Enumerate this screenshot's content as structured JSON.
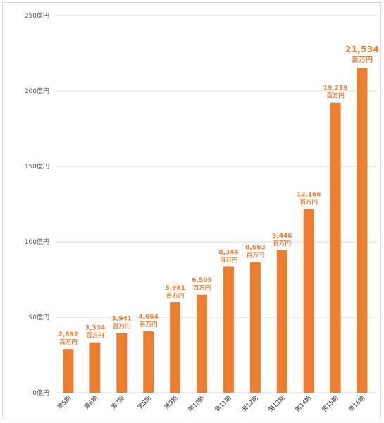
{
  "chart_data": {
    "type": "bar",
    "title": "",
    "xlabel": "",
    "ylabel": "",
    "ylim": [
      0,
      250
    ],
    "y_ticks": [
      0,
      50,
      100,
      150,
      200,
      250
    ],
    "y_tick_labels": [
      "0億円",
      "50億円",
      "100億円",
      "150億円",
      "200億円",
      "250億円"
    ],
    "grid": true,
    "categories": [
      "第5期",
      "第6期",
      "第7期",
      "第8期",
      "第9期",
      "第10期",
      "第11期",
      "第12期",
      "第13期",
      "第14期",
      "第15期",
      "第16期"
    ],
    "values": [
      28.92,
      33.34,
      39.41,
      40.64,
      59.81,
      65.05,
      83.44,
      86.63,
      94.46,
      121.66,
      192.19,
      215.34
    ],
    "data_labels": [
      "2,892",
      "3,334",
      "3,941",
      "4,064",
      "5,981",
      "6,505",
      "8,344",
      "8,663",
      "9,446",
      "12,166",
      "19,219",
      "21,534"
    ],
    "data_label_unit": "百万円",
    "bar_color": "#ed7d31",
    "label_color": "#ed7d31",
    "grid_color": "#d9d9d9"
  }
}
